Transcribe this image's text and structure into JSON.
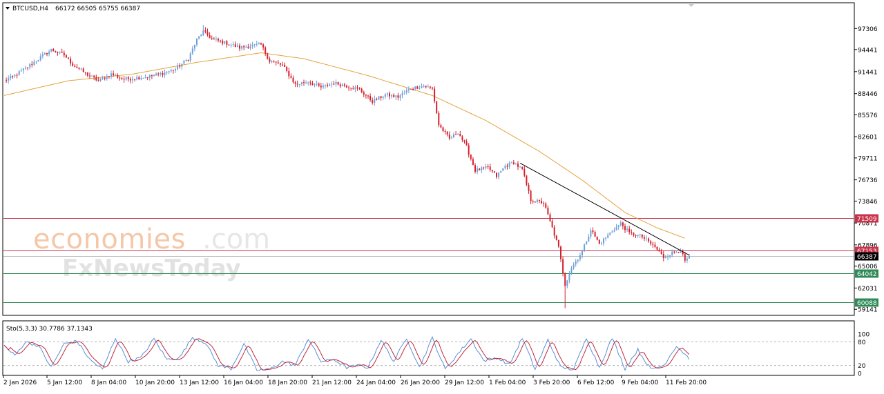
{
  "header": {
    "symbol": "BTCUSD,H4",
    "ohlc": "66172 66505 65755 66387"
  },
  "watermark": {
    "line1_part1": "economies",
    "line1_part2": ".com",
    "line2": "FxNewsToday"
  },
  "colors": {
    "bull": "#6f9fd8",
    "bear": "#d61f2c",
    "ma": "#e6a23c",
    "trendline": "#000000",
    "resistance": "#c8324a",
    "support": "#2e8b57",
    "stoch_main": "#5b8fd6",
    "stoch_signal": "#c0283a"
  },
  "price_axis": {
    "min": 58600,
    "max": 99300,
    "ticks": [
      "97306",
      "94441",
      "91441",
      "88446",
      "85576",
      "82601",
      "79711",
      "76736",
      "73846",
      "70871",
      "67896",
      "65006",
      "62031",
      "59141"
    ]
  },
  "time_axis": {
    "labels": [
      "2 Jan 2026",
      "5 Jan 12:00",
      "8 Jan 04:00",
      "10 Jan 20:00",
      "13 Jan 12:00",
      "16 Jan 04:00",
      "18 Jan 20:00",
      "21 Jan 12:00",
      "24 Jan 04:00",
      "26 Jan 20:00",
      "29 Jan 12:00",
      "1 Feb 04:00",
      "3 Feb 20:00",
      "6 Feb 12:00",
      "9 Feb 04:00",
      "11 Feb 20:00"
    ]
  },
  "levels": [
    {
      "label": "71509",
      "value": 71509,
      "kind": "resistance"
    },
    {
      "label": "67153",
      "value": 67153,
      "kind": "resistance"
    },
    {
      "label": "66387",
      "value": 66387,
      "kind": "current"
    },
    {
      "label": "64042",
      "value": 64042,
      "kind": "support"
    },
    {
      "label": "60088",
      "value": 60088,
      "kind": "support"
    }
  ],
  "stochastic": {
    "label": "Sto(5,3,3) 30.7786 37.1343",
    "ticks": [
      "100",
      "80",
      "20",
      "0"
    ],
    "levels": [
      80,
      20
    ]
  },
  "chart_data": {
    "type": "candlestick",
    "symbol": "BTCUSD",
    "timeframe": "H4",
    "ylim": [
      58600,
      99300
    ],
    "anchors": [
      [
        0,
        90200
      ],
      [
        5,
        90900
      ],
      [
        12,
        92300
      ],
      [
        18,
        93600
      ],
      [
        22,
        94400
      ],
      [
        28,
        93700
      ],
      [
        32,
        92400
      ],
      [
        38,
        91200
      ],
      [
        44,
        90200
      ],
      [
        50,
        91100
      ],
      [
        56,
        90400
      ],
      [
        62,
        90600
      ],
      [
        68,
        90800
      ],
      [
        74,
        91200
      ],
      [
        80,
        91800
      ],
      [
        86,
        93200
      ],
      [
        90,
        95800
      ],
      [
        93,
        96900
      ],
      [
        97,
        95900
      ],
      [
        104,
        95300
      ],
      [
        110,
        94700
      ],
      [
        116,
        95000
      ],
      [
        120,
        95100
      ],
      [
        124,
        92900
      ],
      [
        130,
        92300
      ],
      [
        136,
        89700
      ],
      [
        142,
        90100
      ],
      [
        148,
        89300
      ],
      [
        154,
        89900
      ],
      [
        160,
        89500
      ],
      [
        166,
        89000
      ],
      [
        172,
        87400
      ],
      [
        178,
        88300
      ],
      [
        184,
        88000
      ],
      [
        190,
        89200
      ],
      [
        196,
        89500
      ],
      [
        200,
        89100
      ],
      [
        203,
        84200
      ],
      [
        208,
        82300
      ],
      [
        212,
        83200
      ],
      [
        216,
        81200
      ],
      [
        220,
        78000
      ],
      [
        226,
        78400
      ],
      [
        230,
        77200
      ],
      [
        234,
        78600
      ],
      [
        238,
        79100
      ],
      [
        242,
        78100
      ],
      [
        246,
        74000
      ],
      [
        252,
        73600
      ],
      [
        256,
        70200
      ],
      [
        259,
        67500
      ],
      [
        262,
        62500
      ],
      [
        265,
        64800
      ],
      [
        270,
        67000
      ],
      [
        274,
        70000
      ],
      [
        278,
        68000
      ],
      [
        284,
        69800
      ],
      [
        288,
        70800
      ],
      [
        292,
        69500
      ],
      [
        298,
        69000
      ],
      [
        304,
        67600
      ],
      [
        308,
        66200
      ],
      [
        312,
        66800
      ],
      [
        316,
        67200
      ],
      [
        318,
        65600
      ],
      [
        320,
        66387
      ]
    ],
    "ma_anchors": [
      [
        0,
        88200
      ],
      [
        30,
        90200
      ],
      [
        60,
        91100
      ],
      [
        90,
        92700
      ],
      [
        120,
        94000
      ],
      [
        140,
        93200
      ],
      [
        170,
        90900
      ],
      [
        200,
        88200
      ],
      [
        225,
        84800
      ],
      [
        250,
        80600
      ],
      [
        270,
        76700
      ],
      [
        290,
        72300
      ],
      [
        305,
        70200
      ],
      [
        318,
        68800
      ]
    ],
    "trendline": {
      "from": [
        241,
        79000
      ],
      "to": [
        320,
        66500
      ]
    },
    "stoch_anchors": [
      [
        0,
        70
      ],
      [
        5,
        45
      ],
      [
        10,
        80
      ],
      [
        16,
        70
      ],
      [
        22,
        15
      ],
      [
        28,
        75
      ],
      [
        34,
        82
      ],
      [
        40,
        35
      ],
      [
        46,
        10
      ],
      [
        52,
        90
      ],
      [
        58,
        30
      ],
      [
        64,
        40
      ],
      [
        70,
        88
      ],
      [
        76,
        35
      ],
      [
        82,
        40
      ],
      [
        88,
        92
      ],
      [
        94,
        78
      ],
      [
        100,
        20
      ],
      [
        106,
        12
      ],
      [
        112,
        75
      ],
      [
        118,
        8
      ],
      [
        124,
        10
      ],
      [
        130,
        30
      ],
      [
        136,
        20
      ],
      [
        142,
        88
      ],
      [
        148,
        30
      ],
      [
        154,
        35
      ],
      [
        160,
        15
      ],
      [
        166,
        20
      ],
      [
        170,
        15
      ],
      [
        176,
        85
      ],
      [
        182,
        30
      ],
      [
        188,
        90
      ],
      [
        194,
        15
      ],
      [
        200,
        90
      ],
      [
        206,
        10
      ],
      [
        212,
        50
      ],
      [
        218,
        88
      ],
      [
        224,
        32
      ],
      [
        230,
        40
      ],
      [
        236,
        22
      ],
      [
        242,
        90
      ],
      [
        248,
        10
      ],
      [
        254,
        85
      ],
      [
        260,
        15
      ],
      [
        266,
        10
      ],
      [
        272,
        90
      ],
      [
        278,
        15
      ],
      [
        284,
        90
      ],
      [
        290,
        12
      ],
      [
        296,
        60
      ],
      [
        302,
        10
      ],
      [
        308,
        20
      ],
      [
        314,
        70
      ],
      [
        320,
        38
      ]
    ]
  }
}
